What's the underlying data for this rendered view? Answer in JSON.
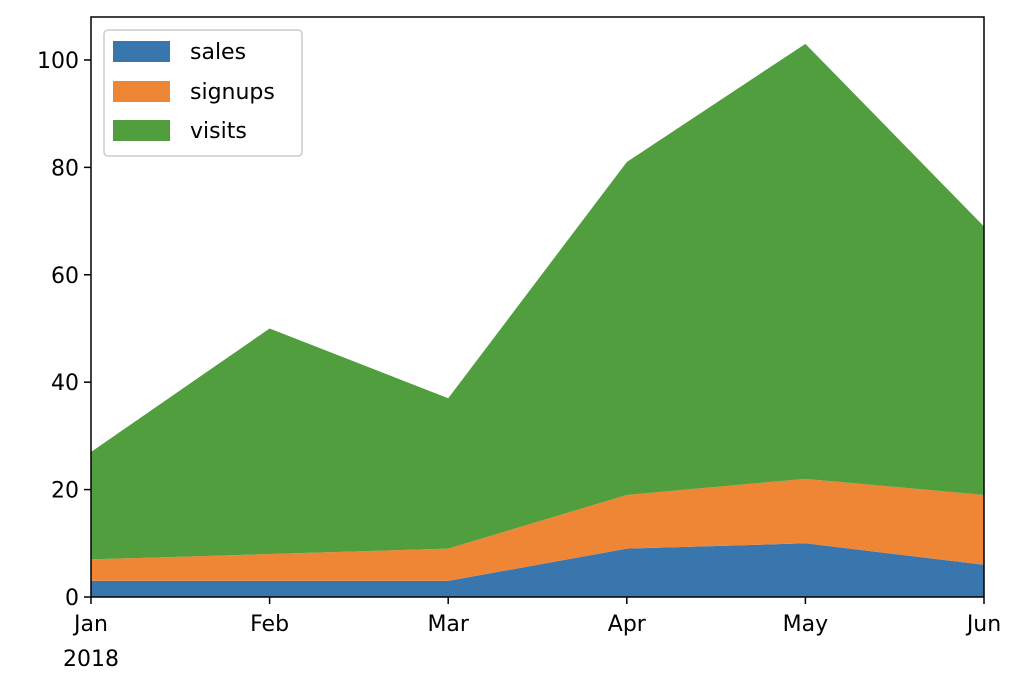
{
  "chart_data": {
    "type": "area",
    "stacked": true,
    "categories": [
      "Jan",
      "Feb",
      "Mar",
      "Apr",
      "May",
      "Jun"
    ],
    "x_tick_labels": [
      "Jan",
      "Feb",
      "Mar",
      "Apr",
      "May",
      "Jun"
    ],
    "x_year_label": "2018",
    "series": [
      {
        "name": "sales",
        "values": [
          3,
          3,
          3,
          9,
          10,
          6
        ],
        "color": "#3a76ae"
      },
      {
        "name": "signups",
        "values": [
          4,
          5,
          6,
          10,
          12,
          13
        ],
        "color": "#ef8636"
      },
      {
        "name": "visits",
        "values": [
          20,
          42,
          28,
          62,
          81,
          50
        ],
        "color": "#519e3e"
      }
    ],
    "ylim": [
      0,
      108
    ],
    "y_ticks": [
      0,
      20,
      40,
      60,
      80,
      100
    ],
    "legend_position": "upper-left",
    "grid": false
  }
}
